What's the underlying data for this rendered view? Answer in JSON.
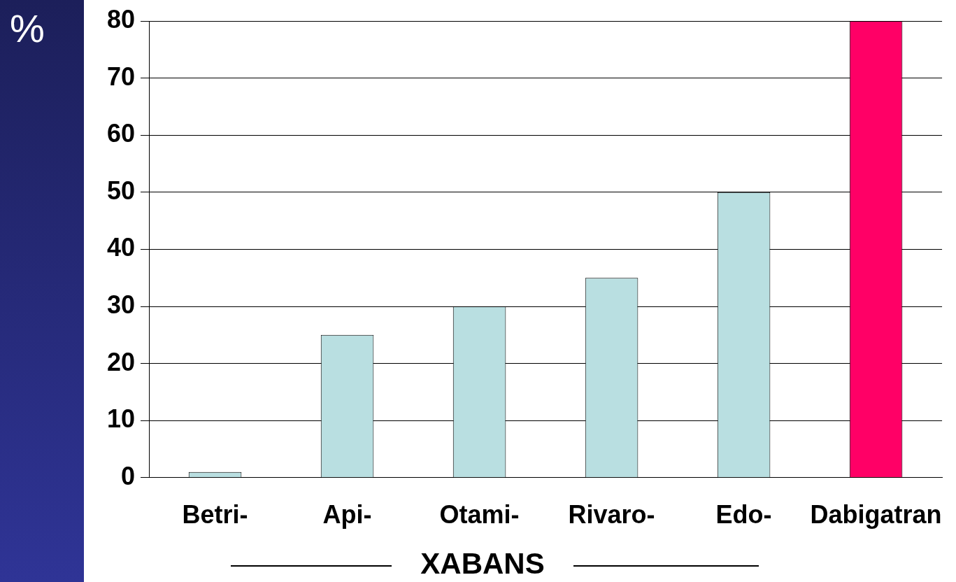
{
  "chart_data": {
    "type": "bar",
    "ylabel": "%",
    "xlabel": "XABANS",
    "categories": [
      "Betri-",
      "Api-",
      "Otami-",
      "Rivaro-",
      "Edo-",
      "Dabigatran"
    ],
    "values": [
      1,
      25,
      30,
      35,
      50,
      80
    ],
    "colors": [
      "#b9dfe1",
      "#b9dfe1",
      "#b9dfe1",
      "#b9dfe1",
      "#b9dfe1",
      "#ff0066"
    ],
    "ylim": [
      0,
      80
    ],
    "yticks": [
      0,
      10,
      20,
      30,
      40,
      50,
      60,
      70,
      80
    ],
    "grid": "y",
    "legend": false
  }
}
